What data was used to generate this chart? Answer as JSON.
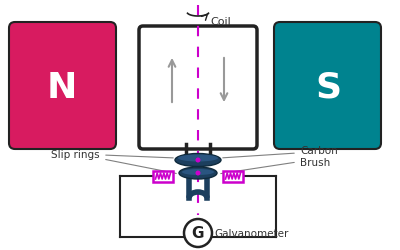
{
  "bg_color": "#ffffff",
  "N_color": "#d81b60",
  "S_color": "#00838f",
  "coil_stroke": "#222222",
  "magnet_stroke": "#222222",
  "slip_ring_color": "#1c3f5e",
  "slip_ring_light": "#2a5580",
  "brush_color": "#cc00cc",
  "dashed_color": "#cc00cc",
  "arrow_color": "#999999",
  "circuit_color": "#222222",
  "galv_color": "#222222",
  "label_color": "#333333",
  "N_label": "N",
  "S_label": "S",
  "coil_label": "Coil",
  "slip_label": "Slip rings",
  "brush_label": "Carbon\nBrush",
  "galv_label": "Galvanometer",
  "fig_w": 4.0,
  "fig_h": 2.5,
  "dpi": 100
}
